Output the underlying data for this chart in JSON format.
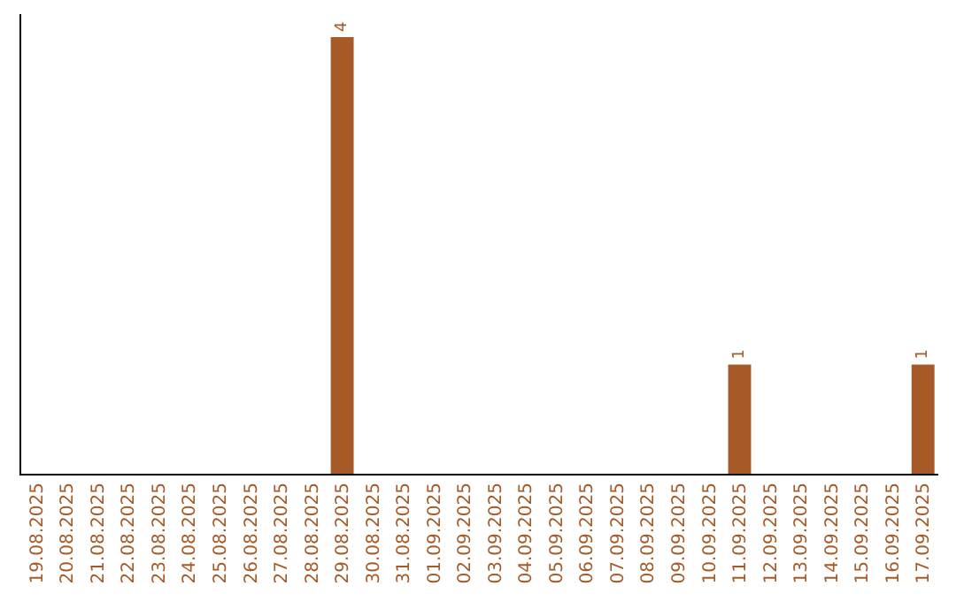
{
  "chart_data": {
    "type": "bar",
    "categories": [
      "19.08.2025",
      "20.08.2025",
      "21.08.2025",
      "22.08.2025",
      "23.08.2025",
      "24.08.2025",
      "25.08.2025",
      "26.08.2025",
      "27.08.2025",
      "28.08.2025",
      "29.08.2025",
      "30.08.2025",
      "31.08.2025",
      "01.09.2025",
      "02.09.2025",
      "03.09.2025",
      "04.09.2025",
      "05.09.2025",
      "06.09.2025",
      "07.09.2025",
      "08.09.2025",
      "09.09.2025",
      "10.09.2025",
      "11.09.2025",
      "12.09.2025",
      "13.09.2025",
      "14.09.2025",
      "15.09.2025",
      "16.09.2025",
      "17.09.2025"
    ],
    "values": [
      0,
      0,
      0,
      0,
      0,
      0,
      0,
      0,
      0,
      0,
      4,
      0,
      0,
      0,
      0,
      0,
      0,
      0,
      0,
      0,
      0,
      0,
      0,
      1,
      0,
      0,
      0,
      0,
      0,
      1
    ],
    "value_labels": [
      null,
      null,
      null,
      null,
      null,
      null,
      null,
      null,
      null,
      null,
      "4",
      null,
      null,
      null,
      null,
      null,
      null,
      null,
      null,
      null,
      null,
      null,
      null,
      "1",
      null,
      null,
      null,
      null,
      null,
      "1"
    ],
    "color": "#a65a28",
    "legend": false
  }
}
